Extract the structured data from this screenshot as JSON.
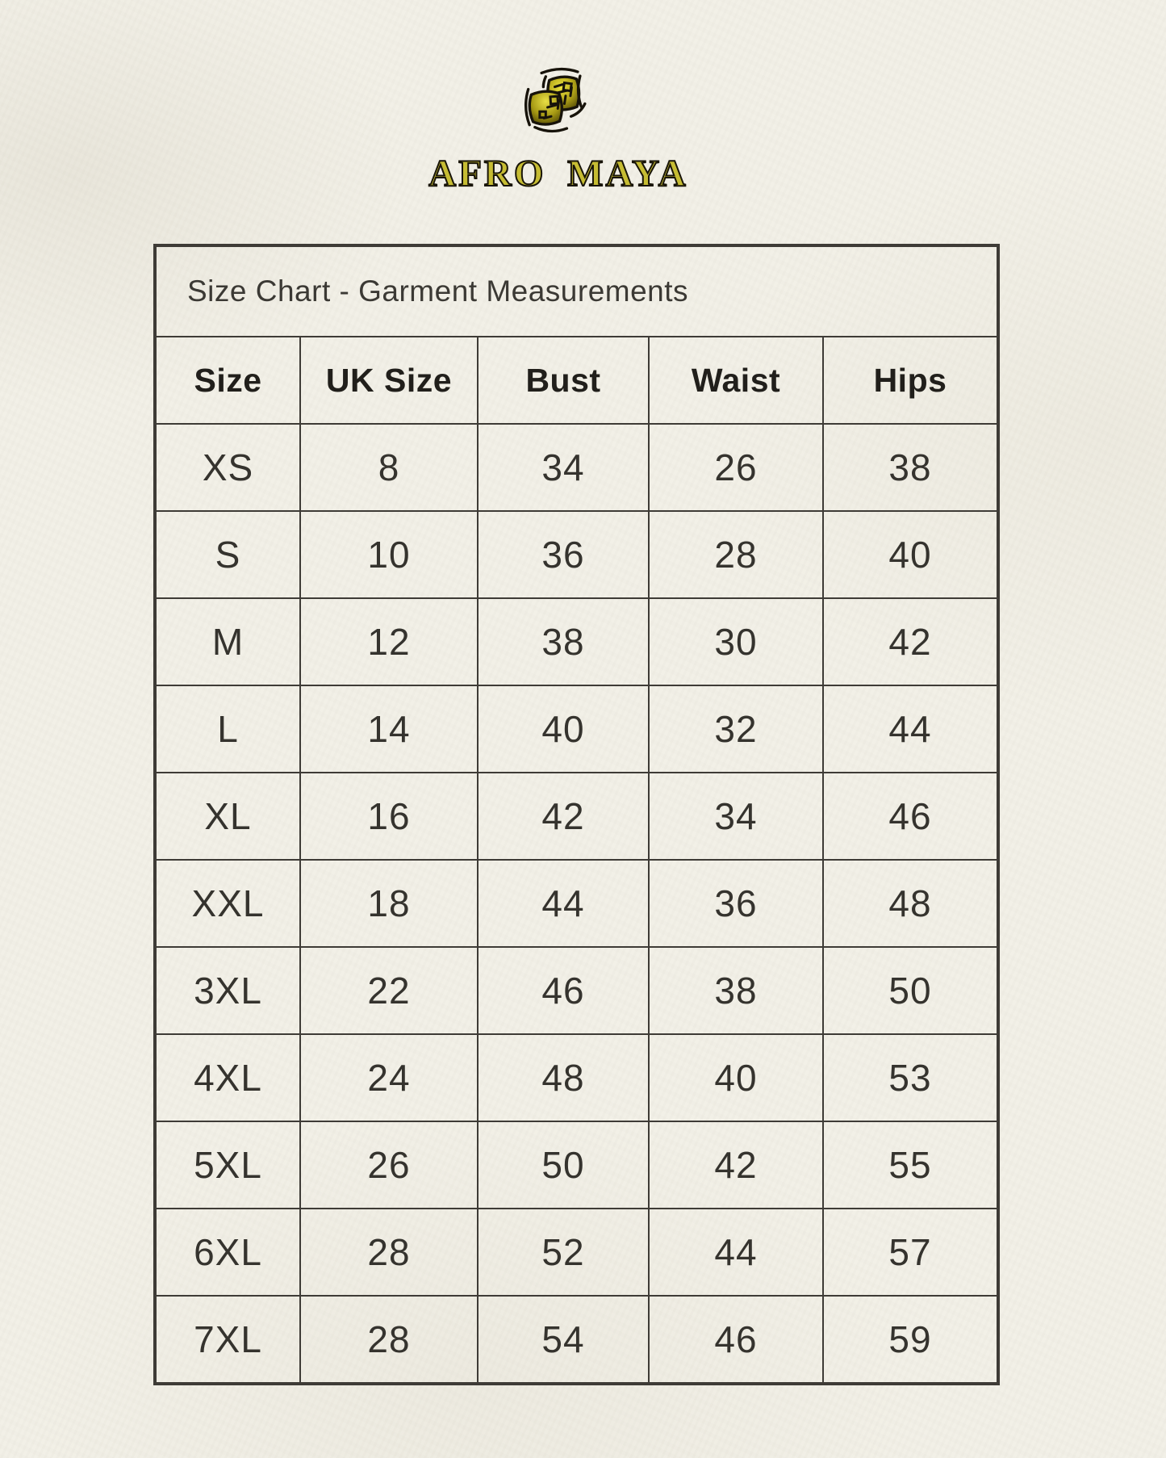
{
  "brand": {
    "name": "AFRO MAYA",
    "logo_icon": "two-overlapping-gold-squares-emblem",
    "colors": {
      "gold_light": "#ece33f",
      "gold_mid": "#b5a71a",
      "gold_dark": "#4f4604",
      "outline": "#17130a",
      "wordmark_fill": "#c6bc33"
    }
  },
  "page": {
    "paper_color": "#f2f0e7",
    "table_line_color": "#3e3b36",
    "text_color": "#34322d"
  },
  "chart_data": {
    "type": "table",
    "title": "Size Chart - Garment Measurements",
    "columns": [
      "Size",
      "UK Size",
      "Bust",
      "Waist",
      "Hips"
    ],
    "rows": [
      [
        "XS",
        "8",
        "34",
        "26",
        "38"
      ],
      [
        "S",
        "10",
        "36",
        "28",
        "40"
      ],
      [
        "M",
        "12",
        "38",
        "30",
        "42"
      ],
      [
        "L",
        "14",
        "40",
        "32",
        "44"
      ],
      [
        "XL",
        "16",
        "42",
        "34",
        "46"
      ],
      [
        "XXL",
        "18",
        "44",
        "36",
        "48"
      ],
      [
        "3XL",
        "22",
        "46",
        "38",
        "50"
      ],
      [
        "4XL",
        "24",
        "48",
        "40",
        "53"
      ],
      [
        "5XL",
        "26",
        "50",
        "42",
        "55"
      ],
      [
        "6XL",
        "28",
        "52",
        "44",
        "57"
      ],
      [
        "7XL",
        "28",
        "54",
        "46",
        "59"
      ]
    ]
  }
}
